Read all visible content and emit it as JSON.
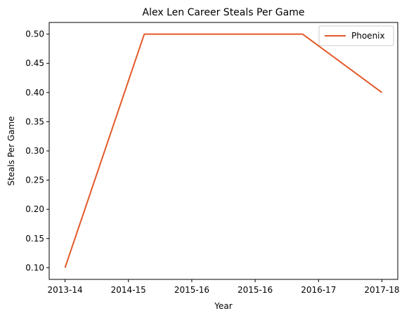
{
  "chart_data": {
    "type": "line",
    "title": "Alex Len Career Steals Per Game",
    "xlabel": "Year",
    "ylabel": "Steals Per Game",
    "x_ticks": [
      "2013-14",
      "2014-15",
      "2015-16",
      "2015-16",
      "2016-17",
      "2017-18"
    ],
    "y_ticks": [
      "0.10",
      "0.15",
      "0.20",
      "0.25",
      "0.30",
      "0.35",
      "0.40",
      "0.45",
      "0.50"
    ],
    "ylim": [
      0.08,
      0.52
    ],
    "grid": false,
    "legend_position": "top-right",
    "series": [
      {
        "name": "Phoenix",
        "color": "#e2592a",
        "x": [
          0,
          1.25,
          3.75,
          5
        ],
        "values": [
          0.1,
          0.5,
          0.5,
          0.4
        ]
      }
    ]
  }
}
